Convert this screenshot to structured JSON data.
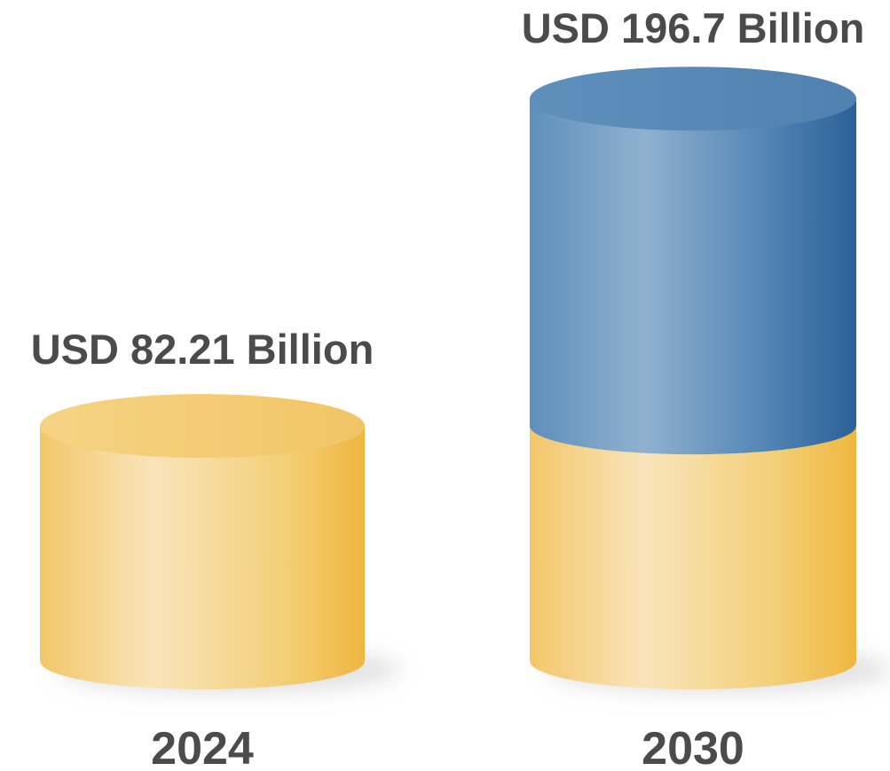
{
  "chart_data": {
    "type": "bar",
    "categories": [
      "2024",
      "2030"
    ],
    "values": [
      82.21,
      196.7
    ],
    "value_labels": [
      "USD 82.21 Billion",
      "USD 196.7 Billion"
    ],
    "title": "",
    "xlabel": "",
    "ylabel": "",
    "base_color": "#f2c665",
    "growth_color": "#5b8db9",
    "text_color": "#4b4b4b"
  }
}
